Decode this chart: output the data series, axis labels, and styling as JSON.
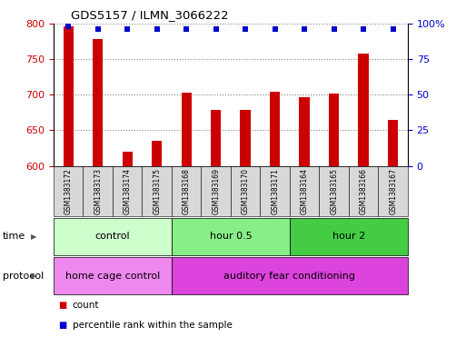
{
  "title": "GDS5157 / ILMN_3066222",
  "samples": [
    "GSM1383172",
    "GSM1383173",
    "GSM1383174",
    "GSM1383175",
    "GSM1383168",
    "GSM1383169",
    "GSM1383170",
    "GSM1383171",
    "GSM1383164",
    "GSM1383165",
    "GSM1383166",
    "GSM1383167"
  ],
  "red_values": [
    795,
    778,
    620,
    635,
    703,
    678,
    679,
    704,
    696,
    701,
    758,
    665
  ],
  "blue_values": [
    98,
    96,
    96,
    96,
    96,
    96,
    96,
    96,
    96,
    96,
    96,
    96
  ],
  "ylim_left": [
    600,
    800
  ],
  "ylim_right": [
    0,
    100
  ],
  "yticks_left": [
    600,
    650,
    700,
    750,
    800
  ],
  "yticks_right": [
    0,
    25,
    50,
    75,
    100
  ],
  "ytick_labels_right": [
    "0",
    "25",
    "50",
    "75",
    "100%"
  ],
  "time_groups": [
    {
      "label": "control",
      "start": 0,
      "end": 4,
      "color": "#ccffcc"
    },
    {
      "label": "hour 0.5",
      "start": 4,
      "end": 8,
      "color": "#88ee88"
    },
    {
      "label": "hour 2",
      "start": 8,
      "end": 12,
      "color": "#44cc44"
    }
  ],
  "protocol_groups": [
    {
      "label": "home cage control",
      "start": 0,
      "end": 4,
      "color": "#ee88ee"
    },
    {
      "label": "auditory fear conditioning",
      "start": 4,
      "end": 12,
      "color": "#dd44dd"
    }
  ],
  "bar_color": "#cc0000",
  "dot_color": "#0000cc",
  "grid_color": "#888888",
  "time_label": "time",
  "protocol_label": "protocol",
  "legend_count": "count",
  "legend_percentile": "percentile rank within the sample",
  "tick_label_color_left": "#cc0000",
  "tick_label_color_right": "#0000cc",
  "sample_box_color": "#d8d8d8",
  "bar_width": 0.35
}
